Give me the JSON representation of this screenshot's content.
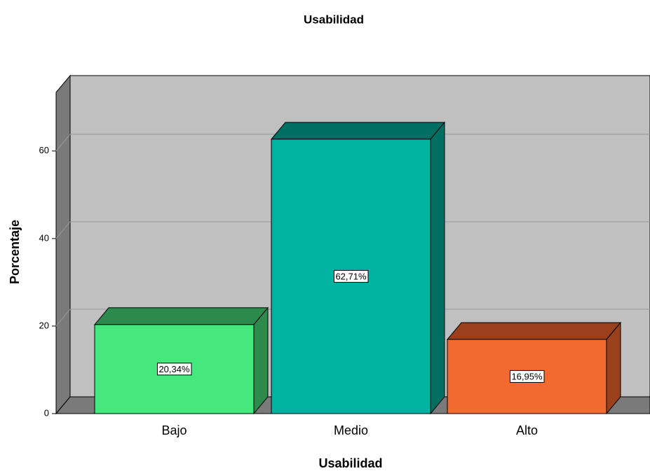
{
  "chart_data": {
    "type": "bar3d",
    "title": "Usabilidad",
    "x_label": "Usabilidad",
    "y_label": "Porcentaje",
    "categories": [
      "Bajo",
      "Medio",
      "Alto"
    ],
    "values": [
      20.34,
      62.71,
      16.95
    ],
    "value_labels": [
      "20,34%",
      "62,71%",
      "16,95%"
    ],
    "colors": [
      "#44e87c",
      "#00b3a0",
      "#f26a2e"
    ],
    "side_colors": [
      "#2b8a4c",
      "#006e63",
      "#9a401d"
    ],
    "ylim": [
      0,
      73.4
    ],
    "yticks": [
      0,
      20,
      40,
      60
    ],
    "grid": true
  }
}
